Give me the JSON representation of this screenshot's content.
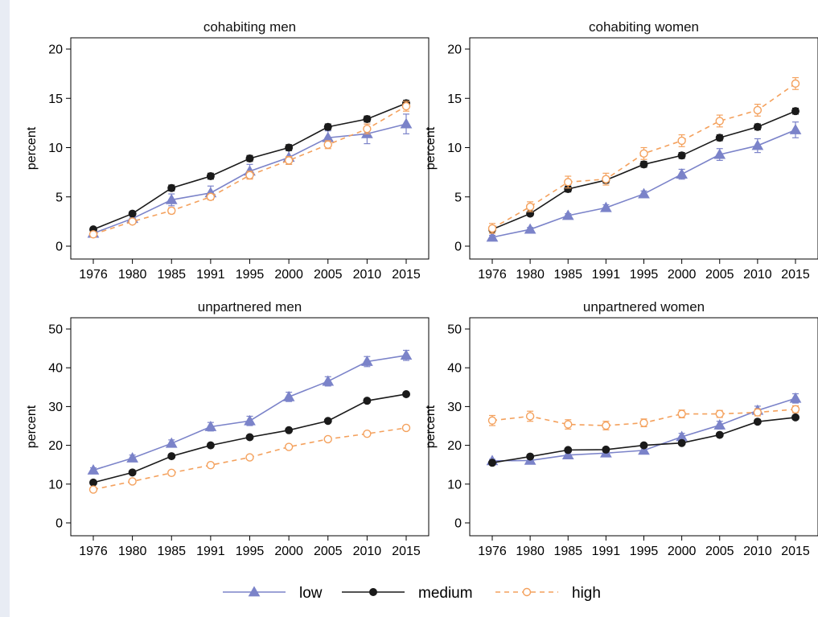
{
  "chart_data": {
    "type": "line",
    "categories": [
      "1976",
      "1980",
      "1985",
      "1991",
      "1995",
      "2000",
      "2005",
      "2010",
      "2015"
    ],
    "legend": {
      "position": "bottom"
    },
    "series_styles": [
      {
        "name": "low",
        "color": "#7b83c9",
        "dash": "none",
        "marker": "triangle"
      },
      {
        "name": "medium",
        "color": "#1a1a1a",
        "dash": "none",
        "marker": "circle"
      },
      {
        "name": "high",
        "color": "#f4a15d",
        "dash": "6,5",
        "marker": "hollow-circle"
      }
    ],
    "panels": [
      {
        "title": "cohabiting men",
        "ylabel": "percent",
        "ylim": [
          0,
          20
        ],
        "yticks": [
          0,
          5,
          10,
          15,
          20
        ],
        "series": [
          {
            "name": "low",
            "values": [
              1.3,
              2.8,
              4.7,
              5.4,
              7.6,
              9.0,
              11.0,
              11.4,
              12.4
            ],
            "err": [
              0.2,
              0.3,
              0.6,
              0.7,
              0.7,
              0.7,
              0.7,
              1.0,
              1.0
            ]
          },
          {
            "name": "medium",
            "values": [
              1.7,
              3.3,
              5.9,
              7.1,
              8.9,
              10.0,
              12.1,
              12.9,
              14.5
            ],
            "err": [
              0.2,
              0.2,
              0.3,
              0.3,
              0.3,
              0.3,
              0.3,
              0.3,
              0.3
            ]
          },
          {
            "name": "high",
            "values": [
              1.2,
              2.5,
              3.6,
              5.0,
              7.2,
              8.7,
              10.3,
              11.9,
              14.2
            ],
            "err": [
              0.2,
              0.2,
              0.3,
              0.3,
              0.4,
              0.4,
              0.4,
              0.5,
              0.5
            ]
          }
        ]
      },
      {
        "title": "cohabiting women",
        "ylabel": "percent",
        "ylim": [
          0,
          20
        ],
        "yticks": [
          0,
          5,
          10,
          15,
          20
        ],
        "series": [
          {
            "name": "low",
            "values": [
              0.9,
              1.7,
              3.1,
              3.9,
              5.3,
              7.3,
              9.3,
              10.2,
              11.8
            ],
            "err": [
              0.2,
              0.2,
              0.2,
              0.3,
              0.3,
              0.5,
              0.6,
              0.7,
              0.8
            ]
          },
          {
            "name": "medium",
            "values": [
              1.7,
              3.3,
              5.8,
              6.7,
              8.3,
              9.2,
              11.0,
              12.1,
              13.7
            ],
            "err": [
              0.2,
              0.2,
              0.3,
              0.3,
              0.3,
              0.3,
              0.3,
              0.3,
              0.3
            ]
          },
          {
            "name": "high",
            "values": [
              1.8,
              4.0,
              6.5,
              6.8,
              9.4,
              10.7,
              12.7,
              13.8,
              16.5
            ],
            "err": [
              0.5,
              0.5,
              0.6,
              0.6,
              0.6,
              0.6,
              0.6,
              0.6,
              0.6
            ]
          }
        ]
      },
      {
        "title": "unpartnered men",
        "ylabel": "percent",
        "ylim": [
          0,
          50
        ],
        "yticks": [
          0,
          10,
          20,
          30,
          40,
          50
        ],
        "series": [
          {
            "name": "low",
            "values": [
              13.6,
              16.7,
              20.5,
              24.8,
              26.3,
              32.5,
              36.5,
              41.6,
              43.2
            ],
            "err": [
              0.6,
              0.8,
              0.9,
              1.1,
              1.2,
              1.2,
              1.2,
              1.3,
              1.3
            ]
          },
          {
            "name": "medium",
            "values": [
              10.4,
              13.0,
              17.2,
              20.0,
              22.1,
              23.9,
              26.3,
              31.5,
              33.2
            ],
            "err": [
              0.4,
              0.4,
              0.4,
              0.4,
              0.4,
              0.4,
              0.4,
              0.5,
              0.5
            ]
          },
          {
            "name": "high",
            "values": [
              8.6,
              10.7,
              12.9,
              14.9,
              16.9,
              19.6,
              21.6,
              23.0,
              24.5
            ],
            "err": [
              0.5,
              0.5,
              0.5,
              0.5,
              0.5,
              0.5,
              0.5,
              0.5,
              0.5
            ]
          }
        ]
      },
      {
        "title": "unpartnered women",
        "ylabel": "percent",
        "ylim": [
          0,
          50
        ],
        "yticks": [
          0,
          10,
          20,
          30,
          40,
          50
        ],
        "series": [
          {
            "name": "low",
            "values": [
              16.0,
              16.1,
              17.5,
              18.0,
              18.7,
              22.2,
              25.2,
              29.0,
              32.1
            ],
            "err": [
              0.4,
              0.5,
              0.6,
              0.6,
              0.7,
              0.9,
              1.0,
              1.1,
              1.2
            ]
          },
          {
            "name": "medium",
            "values": [
              15.5,
              17.1,
              18.8,
              18.9,
              20.0,
              20.6,
              22.7,
              26.1,
              27.2
            ],
            "err": [
              0.4,
              0.4,
              0.4,
              0.4,
              0.4,
              0.4,
              0.4,
              0.4,
              0.4
            ]
          },
          {
            "name": "high",
            "values": [
              26.4,
              27.5,
              25.4,
              25.1,
              25.8,
              28.1,
              28.1,
              28.5,
              29.3
            ],
            "err": [
              1.3,
              1.3,
              1.2,
              1.1,
              1.0,
              1.0,
              0.9,
              0.9,
              0.9
            ]
          }
        ]
      }
    ]
  }
}
